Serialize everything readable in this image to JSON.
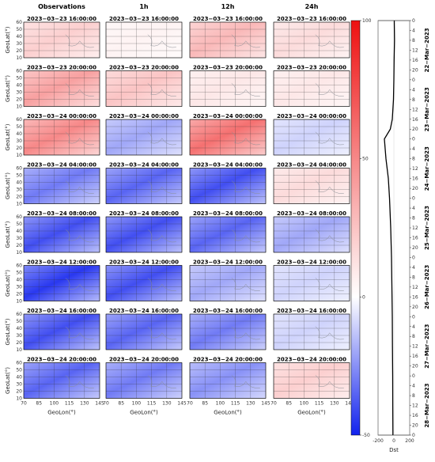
{
  "chart_data": {
    "type": "heatmap",
    "columns": [
      "Observations",
      "1h",
      "12h",
      "24h"
    ],
    "rows": [
      {
        "timestamp": "2023−03−23 16:00:00",
        "label": "2023−03−23 16:00:00",
        "values": [
          20,
          5,
          30,
          15
        ]
      },
      {
        "timestamp": "2023−03−23 20:00:00",
        "label": "2023−03−23 20:00:00",
        "values": [
          40,
          25,
          10,
          10
        ]
      },
      {
        "timestamp": "2023−03−24 00:00:00",
        "label": "2023−03−24 00:00:00",
        "values": [
          50,
          -20,
          60,
          -10
        ]
      },
      {
        "timestamp": "2023−03−24 04:00:00",
        "label": "2023−03−24 04:00:00",
        "values": [
          -30,
          -35,
          -40,
          15
        ]
      },
      {
        "timestamp": "2023−03−24 08:00:00",
        "label": "2023−03−24 08:00:00",
        "values": [
          -40,
          -40,
          -35,
          -20
        ]
      },
      {
        "timestamp": "2023−03−24 12:00:00",
        "label": "2023−03−24 12:00:00",
        "values": [
          -45,
          -40,
          -20,
          -10
        ]
      },
      {
        "timestamp": "2023−03−24 16:00:00",
        "label": "2023−03−24 16:00:00",
        "values": [
          -40,
          -35,
          -30,
          -10
        ]
      },
      {
        "timestamp": "2023−03−24 20:00:00",
        "label": "2023−03−24 20:00:00",
        "values": [
          -35,
          -30,
          -25,
          20
        ]
      }
    ],
    "xlabel": "GeoLon(°)",
    "ylabel": "GeoLat(°)",
    "xticks": [
      70,
      85,
      100,
      115,
      130,
      145
    ],
    "yticks": [
      10,
      20,
      30,
      40,
      50,
      60
    ],
    "xlim": [
      70,
      145
    ],
    "ylim": [
      10,
      60
    ],
    "colorbar": {
      "ticks": [
        100,
        50,
        0,
        -50
      ],
      "range": [
        -50,
        100
      ],
      "colors": {
        "high": "#ee1111",
        "mid": "#ffffff",
        "low": "#1122ee"
      }
    },
    "dst_panel": {
      "xlabel": "Dst",
      "xticks": [
        -200,
        0,
        200
      ],
      "hour_ticks": [
        "0",
        "4",
        "8",
        "12",
        "16",
        "20",
        "0",
        "4",
        "8",
        "12",
        "16",
        "20",
        "0",
        "4",
        "8",
        "12",
        "16",
        "20",
        "0",
        "4",
        "8",
        "12",
        "16",
        "20",
        "0",
        "4",
        "8",
        "12",
        "16",
        "20",
        "0",
        "4",
        "8",
        "12",
        "16",
        "20",
        "0",
        "4",
        "8",
        "12",
        "16",
        "20",
        "0"
      ],
      "days": [
        "22−Mar−2023",
        "23−Mar−2023",
        "24−Mar−2023",
        "25−Mar−2023",
        "26−Mar−2023",
        "27−Mar−2023",
        "28−Mar−2023"
      ],
      "series": [
        {
          "hour": 0,
          "dst": 5
        },
        {
          "hour": 8,
          "dst": 8
        },
        {
          "hour": 16,
          "dst": 3
        },
        {
          "hour": 24,
          "dst": 0
        },
        {
          "hour": 32,
          "dst": -5
        },
        {
          "hour": 40,
          "dst": -20
        },
        {
          "hour": 44,
          "dst": -45
        },
        {
          "hour": 48,
          "dst": -120
        },
        {
          "hour": 52,
          "dst": -110
        },
        {
          "hour": 56,
          "dst": -100
        },
        {
          "hour": 64,
          "dst": -70
        },
        {
          "hour": 72,
          "dst": -55
        },
        {
          "hour": 84,
          "dst": -40
        },
        {
          "hour": 96,
          "dst": -30
        },
        {
          "hour": 108,
          "dst": -25
        },
        {
          "hour": 120,
          "dst": -20
        },
        {
          "hour": 132,
          "dst": -18
        },
        {
          "hour": 144,
          "dst": -15
        },
        {
          "hour": 156,
          "dst": -14
        },
        {
          "hour": 168,
          "dst": -12
        }
      ]
    }
  }
}
